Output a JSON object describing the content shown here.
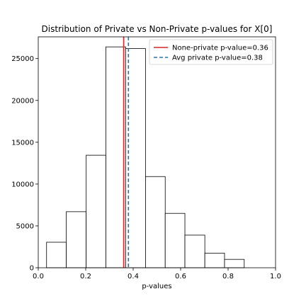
{
  "chart_data": {
    "type": "bar",
    "title": "Distribution of Private vs Non-Private p-values for X[0]",
    "xlabel": "p-values",
    "ylabel": "",
    "xlim": [
      0.0,
      1.0
    ],
    "ylim": [
      0,
      27600
    ],
    "xticks": [
      0.0,
      0.2,
      0.4,
      0.6,
      0.8,
      1.0
    ],
    "xtick_labels": [
      "0.0",
      "0.2",
      "0.4",
      "0.6",
      "0.8",
      "1.0"
    ],
    "yticks": [
      0,
      5000,
      10000,
      15000,
      20000,
      25000
    ],
    "ytick_labels": [
      "0",
      "5000",
      "10000",
      "15000",
      "20000",
      "25000"
    ],
    "bin_edges": [
      0.035,
      0.118,
      0.202,
      0.285,
      0.368,
      0.452,
      0.535,
      0.618,
      0.702,
      0.785,
      0.868
    ],
    "values": [
      3050,
      6700,
      13450,
      26400,
      26200,
      10900,
      6500,
      3900,
      1750,
      1000
    ],
    "bar_fill": "#ffffff",
    "bar_edge": "#000000",
    "vlines": [
      {
        "x": 0.36,
        "color": "#d62728",
        "style": "solid",
        "label": "None-private p-value=0.36"
      },
      {
        "x": 0.38,
        "color": "#1f77b4",
        "style": "dashed",
        "label": "Avg private p-value=0.38"
      }
    ],
    "legend_position": "top-right",
    "grid": false
  }
}
